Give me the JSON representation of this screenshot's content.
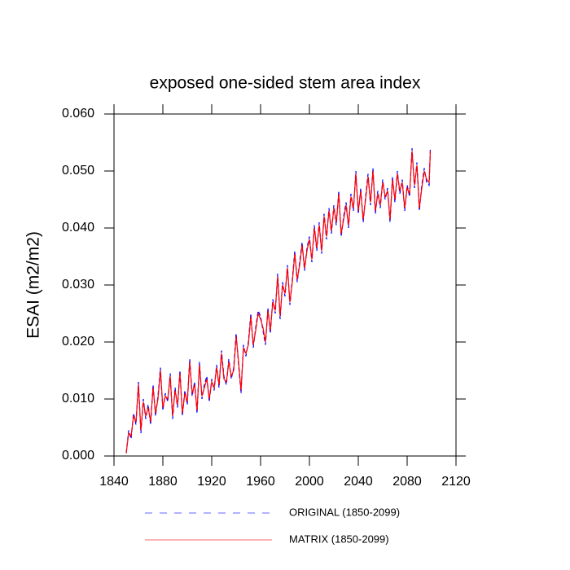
{
  "chart_data": {
    "type": "line",
    "title": "exposed one-sided stem area index",
    "y_label": "ESAI  (m2/m2)",
    "xlim": [
      1840,
      2120
    ],
    "xticks": [
      1840,
      1880,
      1920,
      1960,
      2000,
      2040,
      2080,
      2120
    ],
    "ylim": [
      0,
      0.06
    ],
    "yticks": [
      {
        "value": 0,
        "label": "0.000"
      },
      {
        "value": 0.01,
        "label": "0.010"
      },
      {
        "value": 0.02,
        "label": "0.020"
      },
      {
        "value": 0.03,
        "label": "0.030"
      },
      {
        "value": 0.04,
        "label": "0.040"
      },
      {
        "value": 0.05,
        "label": "0.050"
      },
      {
        "value": 0.06,
        "label": "0.060"
      }
    ],
    "x": [
      1850,
      1852,
      1854,
      1856,
      1858,
      1860,
      1862,
      1864,
      1866,
      1868,
      1870,
      1872,
      1874,
      1876,
      1878,
      1880,
      1882,
      1884,
      1886,
      1888,
      1890,
      1892,
      1894,
      1896,
      1898,
      1900,
      1902,
      1904,
      1906,
      1908,
      1910,
      1912,
      1914,
      1916,
      1918,
      1920,
      1922,
      1924,
      1926,
      1928,
      1930,
      1932,
      1934,
      1936,
      1938,
      1940,
      1942,
      1944,
      1946,
      1948,
      1950,
      1952,
      1954,
      1956,
      1958,
      1960,
      1962,
      1964,
      1966,
      1968,
      1970,
      1972,
      1974,
      1976,
      1978,
      1980,
      1982,
      1984,
      1986,
      1988,
      1990,
      1992,
      1994,
      1996,
      1998,
      2000,
      2002,
      2004,
      2006,
      2008,
      2010,
      2012,
      2014,
      2016,
      2018,
      2020,
      2022,
      2024,
      2026,
      2028,
      2030,
      2032,
      2034,
      2036,
      2038,
      2040,
      2042,
      2044,
      2046,
      2048,
      2050,
      2052,
      2054,
      2056,
      2058,
      2060,
      2062,
      2064,
      2066,
      2068,
      2070,
      2072,
      2074,
      2076,
      2078,
      2080,
      2082,
      2084,
      2086,
      2088,
      2090,
      2092,
      2094,
      2096,
      2098,
      2099
    ],
    "series": [
      {
        "name": "ORIGINAL (1850-2099)",
        "color": "#0000ff",
        "dashed": true,
        "values": [
          0.0005,
          0.0045,
          0.003,
          0.0075,
          0.0055,
          0.013,
          0.004,
          0.01,
          0.0065,
          0.009,
          0.0055,
          0.0125,
          0.007,
          0.0105,
          0.0155,
          0.008,
          0.011,
          0.0095,
          0.0145,
          0.0065,
          0.012,
          0.0085,
          0.015,
          0.007,
          0.0115,
          0.009,
          0.017,
          0.0105,
          0.013,
          0.0075,
          0.0165,
          0.01,
          0.0125,
          0.014,
          0.0095,
          0.0135,
          0.0115,
          0.016,
          0.012,
          0.0185,
          0.014,
          0.0125,
          0.017,
          0.0135,
          0.0155,
          0.0215,
          0.016,
          0.011,
          0.0195,
          0.0175,
          0.02,
          0.025,
          0.019,
          0.0225,
          0.0255,
          0.0245,
          0.022,
          0.0195,
          0.026,
          0.0215,
          0.0275,
          0.025,
          0.032,
          0.024,
          0.0305,
          0.028,
          0.0335,
          0.0265,
          0.031,
          0.036,
          0.0305,
          0.034,
          0.0375,
          0.0325,
          0.0365,
          0.0385,
          0.034,
          0.0405,
          0.036,
          0.041,
          0.0355,
          0.0425,
          0.038,
          0.0435,
          0.039,
          0.044,
          0.0405,
          0.0465,
          0.0385,
          0.042,
          0.0445,
          0.04,
          0.046,
          0.043,
          0.05,
          0.0425,
          0.047,
          0.041,
          0.0455,
          0.0495,
          0.044,
          0.0505,
          0.0425,
          0.0465,
          0.0435,
          0.0485,
          0.045,
          0.047,
          0.041,
          0.049,
          0.0445,
          0.05,
          0.046,
          0.0485,
          0.043,
          0.0475,
          0.0455,
          0.054,
          0.047,
          0.0515,
          0.043,
          0.0475,
          0.0505,
          0.048,
          0.0475,
          0.054
        ]
      },
      {
        "name": "MATRIX (1850-2099)",
        "color": "#ff0000",
        "dashed": false,
        "values": [
          0.0005,
          0.004,
          0.0035,
          0.007,
          0.006,
          0.0125,
          0.0045,
          0.0095,
          0.007,
          0.0085,
          0.006,
          0.012,
          0.0075,
          0.01,
          0.015,
          0.0085,
          0.0105,
          0.01,
          0.014,
          0.007,
          0.0115,
          0.009,
          0.0145,
          0.0075,
          0.011,
          0.0095,
          0.0165,
          0.011,
          0.0125,
          0.008,
          0.016,
          0.0105,
          0.012,
          0.0135,
          0.01,
          0.013,
          0.012,
          0.0155,
          0.0125,
          0.018,
          0.0135,
          0.013,
          0.0165,
          0.014,
          0.015,
          0.021,
          0.0165,
          0.0115,
          0.019,
          0.018,
          0.0195,
          0.0245,
          0.0195,
          0.022,
          0.025,
          0.024,
          0.0225,
          0.02,
          0.0255,
          0.022,
          0.027,
          0.0255,
          0.0315,
          0.0245,
          0.03,
          0.0285,
          0.033,
          0.027,
          0.0305,
          0.0355,
          0.031,
          0.0335,
          0.037,
          0.033,
          0.036,
          0.038,
          0.0345,
          0.04,
          0.0365,
          0.0405,
          0.036,
          0.042,
          0.0385,
          0.043,
          0.0395,
          0.0435,
          0.041,
          0.046,
          0.039,
          0.0415,
          0.044,
          0.0405,
          0.0455,
          0.0435,
          0.0495,
          0.043,
          0.0465,
          0.0415,
          0.045,
          0.049,
          0.0445,
          0.05,
          0.043,
          0.046,
          0.044,
          0.048,
          0.0455,
          0.0465,
          0.0415,
          0.0485,
          0.045,
          0.0495,
          0.0465,
          0.048,
          0.0435,
          0.047,
          0.046,
          0.0535,
          0.0475,
          0.051,
          0.0435,
          0.047,
          0.05,
          0.0485,
          0.048,
          0.0535
        ]
      }
    ]
  }
}
